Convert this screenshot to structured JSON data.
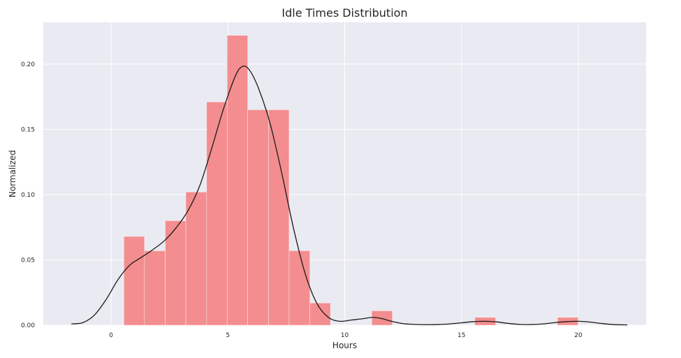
{
  "chart_data": {
    "type": "bar",
    "title": "Idle Times Distribution",
    "xlabel": "Hours",
    "ylabel": "Normalized",
    "xlim": [
      -2.9,
      22.9
    ],
    "ylim": [
      0,
      0.232
    ],
    "xticks": [
      0,
      5,
      10,
      15,
      20
    ],
    "yticks": [
      0.0,
      0.05,
      0.1,
      0.15,
      0.2
    ],
    "xtick_labels": [
      "0",
      "5",
      "10",
      "15",
      "20"
    ],
    "ytick_labels": [
      "0.00",
      "0.05",
      "0.10",
      "0.15",
      "0.20"
    ],
    "grid": true,
    "bars": [
      {
        "x0": 0.55,
        "x1": 1.43,
        "height": 0.068
      },
      {
        "x0": 1.43,
        "x1": 2.32,
        "height": 0.057
      },
      {
        "x0": 2.32,
        "x1": 3.2,
        "height": 0.08
      },
      {
        "x0": 3.2,
        "x1": 4.09,
        "height": 0.102
      },
      {
        "x0": 4.09,
        "x1": 4.97,
        "height": 0.171
      },
      {
        "x0": 4.97,
        "x1": 5.85,
        "height": 0.222
      },
      {
        "x0": 5.85,
        "x1": 6.74,
        "height": 0.165
      },
      {
        "x0": 6.74,
        "x1": 7.62,
        "height": 0.165
      },
      {
        "x0": 7.62,
        "x1": 8.51,
        "height": 0.057
      },
      {
        "x0": 8.51,
        "x1": 9.39,
        "height": 0.017
      },
      {
        "x0": 11.16,
        "x1": 12.04,
        "height": 0.011
      },
      {
        "x0": 15.57,
        "x1": 16.46,
        "height": 0.006
      },
      {
        "x0": 19.11,
        "x1": 19.99,
        "height": 0.006
      }
    ],
    "kde": {
      "x": [
        -1.7,
        -1.2,
        -0.7,
        -0.2,
        0.3,
        0.8,
        1.3,
        1.8,
        2.3,
        2.8,
        3.3,
        3.8,
        4.3,
        4.8,
        5.3,
        5.6,
        5.9,
        6.3,
        6.8,
        7.3,
        7.8,
        8.3,
        8.8,
        9.3,
        9.8,
        10.3,
        10.8,
        11.2,
        11.6,
        12.0,
        12.5,
        13.0,
        13.5,
        14.0,
        14.5,
        15.0,
        15.5,
        16.0,
        16.5,
        17.0,
        17.5,
        18.0,
        18.5,
        19.0,
        19.5,
        20.0,
        20.5,
        21.0,
        21.5,
        22.1
      ],
      "y": [
        0.001,
        0.002,
        0.008,
        0.02,
        0.035,
        0.046,
        0.052,
        0.058,
        0.065,
        0.075,
        0.088,
        0.107,
        0.135,
        0.165,
        0.19,
        0.198,
        0.196,
        0.182,
        0.155,
        0.117,
        0.075,
        0.04,
        0.017,
        0.006,
        0.003,
        0.004,
        0.005,
        0.006,
        0.005,
        0.003,
        0.0012,
        0.0006,
        0.0004,
        0.0005,
        0.001,
        0.0018,
        0.0027,
        0.003,
        0.0025,
        0.0014,
        0.0006,
        0.0005,
        0.001,
        0.002,
        0.0027,
        0.003,
        0.0024,
        0.0013,
        0.0005,
        0.0002
      ]
    },
    "colors": {
      "background": "#eaeaf2",
      "grid": "#ffffff",
      "bar": "#f38d8f",
      "kde": "#1a1a1a",
      "text": "#262626"
    }
  }
}
